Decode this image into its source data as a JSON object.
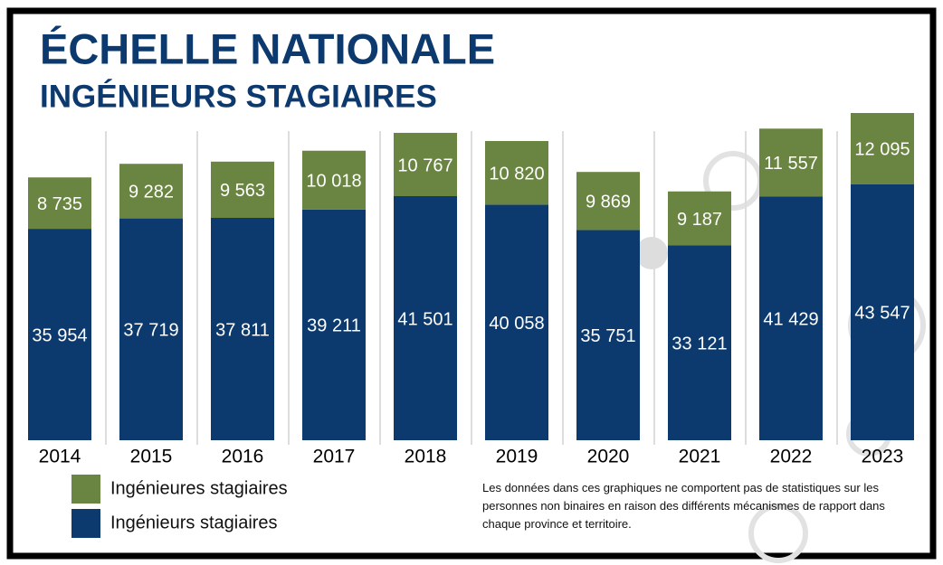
{
  "chart_data": {
    "type": "stacked_bar",
    "title": "ÉCHELLE NATIONALE",
    "subtitle": "INGÉNIEURS STAGIAIRES",
    "categories": [
      "2014",
      "2015",
      "2016",
      "2017",
      "2018",
      "2019",
      "2020",
      "2021",
      "2022",
      "2023"
    ],
    "series": [
      {
        "name": "Ingénieurs stagiaires",
        "color": "#0d3a6e",
        "values": [
          35954,
          37719,
          37811,
          39211,
          41501,
          40058,
          35751,
          33121,
          41429,
          43547
        ],
        "value_labels": [
          "35 954",
          "37 719",
          "37 811",
          "39 211",
          "41 501",
          "40 058",
          "35 751",
          "33 121",
          "41 429",
          "43 547"
        ]
      },
      {
        "name": "Ingénieures stagiaires",
        "color": "#6a8441",
        "values": [
          8735,
          9282,
          9563,
          10018,
          10767,
          10820,
          9869,
          9187,
          11557,
          12095
        ],
        "value_labels": [
          "8 735",
          "9 282",
          "9 563",
          "10 018",
          "10 767",
          "10 820",
          "9 869",
          "9 187",
          "11 557",
          "12 095"
        ]
      }
    ],
    "note": "Les données dans ces graphiques ne comportent pas de statistiques sur les personnes non binaires en raison des différents mécanismes de rapport dans chaque province et territoire."
  }
}
